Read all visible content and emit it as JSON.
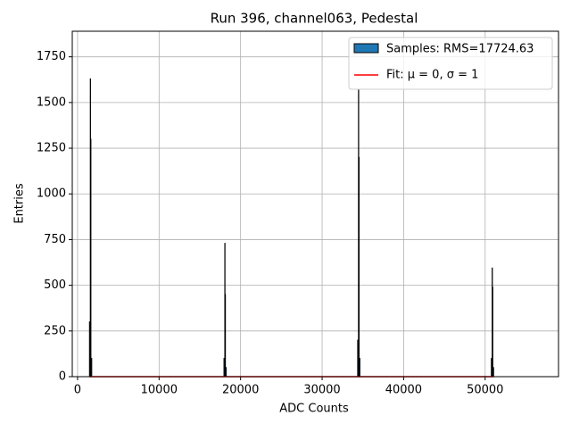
{
  "chart_data": {
    "type": "histogram",
    "title": "Run 396, channel063, Pedestal",
    "xlabel": "ADC Counts",
    "ylabel": "Entries",
    "bins": [
      1450,
      1550,
      1600,
      1650,
      1750,
      17950,
      18050,
      18100,
      18150,
      18250,
      34350,
      34450,
      34500,
      34550,
      34650,
      50750,
      50850,
      50900,
      50950,
      51050
    ],
    "counts": [
      300,
      1630,
      1300,
      100,
      0,
      100,
      730,
      450,
      50,
      0,
      200,
      1570,
      1200,
      100,
      0,
      100,
      595,
      490,
      50
    ],
    "hist_name": "Samples: RMS=17724.63",
    "hist_color": "#1f77b4",
    "edge_color": "#000000",
    "fit": {
      "name": "Fit: μ = 0, σ = 1",
      "color": "#ff0000",
      "x": [
        1450,
        51050
      ],
      "values": [
        0,
        0
      ]
    },
    "xlim": [
      -650,
      59000
    ],
    "ylim": [
      0,
      1890
    ],
    "xticks": [
      0,
      10000,
      20000,
      30000,
      40000,
      50000
    ],
    "yticks": [
      0,
      250,
      500,
      750,
      1000,
      1250,
      1500,
      1750
    ],
    "grid": true,
    "legend": "upper right"
  }
}
